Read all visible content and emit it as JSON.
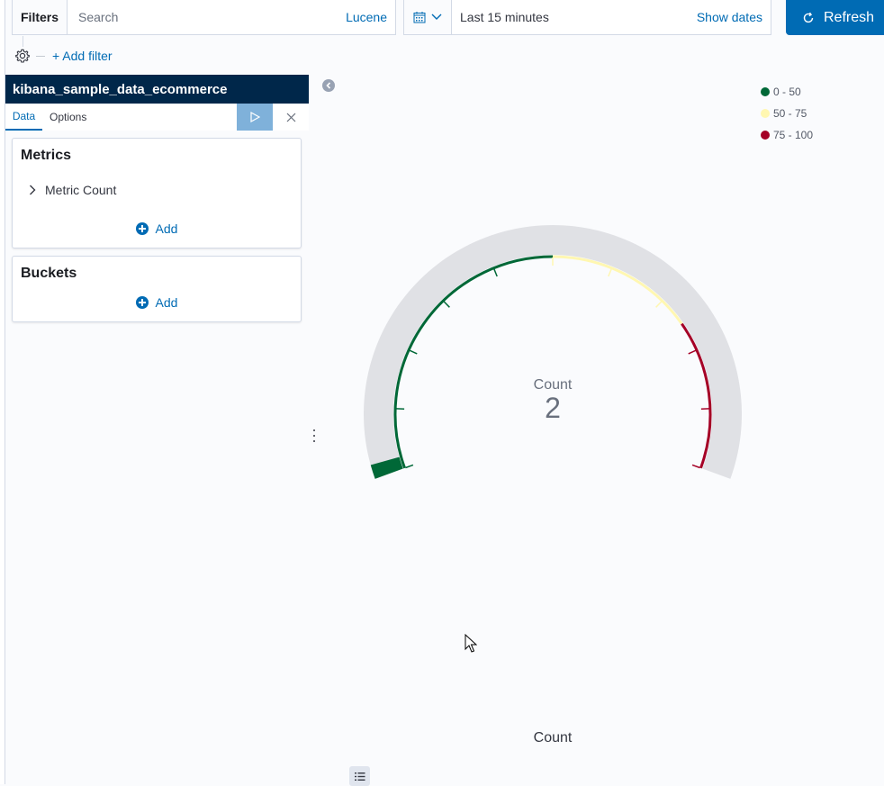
{
  "query_bar": {
    "filters_label": "Filters",
    "search_placeholder": "Search",
    "language_label": "Lucene",
    "time_range": "Last 15 minutes",
    "show_dates_label": "Show dates",
    "refresh_label": "Refresh"
  },
  "filter_bar": {
    "add_filter_label": "+ Add filter"
  },
  "sidebar": {
    "index_pattern": "kibana_sample_data_ecommerce",
    "tabs": [
      {
        "label": "Data",
        "active": true
      },
      {
        "label": "Options",
        "active": false
      }
    ],
    "metrics": {
      "heading": "Metrics",
      "items": [
        {
          "label": "Metric Count"
        }
      ],
      "add_label": "Add"
    },
    "buckets": {
      "heading": "Buckets",
      "add_label": "Add"
    }
  },
  "chart_data": {
    "type": "gauge",
    "sub_label": "Count",
    "value": 2,
    "title": "Count",
    "range": [
      0,
      100
    ],
    "ranges": [
      {
        "label": "0 - 50",
        "from": 0,
        "to": 50,
        "color": "#006837"
      },
      {
        "label": "50 - 75",
        "from": 50,
        "to": 75,
        "color": "#fff7b1"
      },
      {
        "label": "75 - 100",
        "from": 75,
        "to": 100,
        "color": "#a50026"
      }
    ],
    "legend_position": "top-right",
    "background_color": "#e0e1e5"
  },
  "colors": {
    "accent": "#006bb4",
    "header_dark": "#00274a",
    "apply_button": "#7fb1da"
  }
}
